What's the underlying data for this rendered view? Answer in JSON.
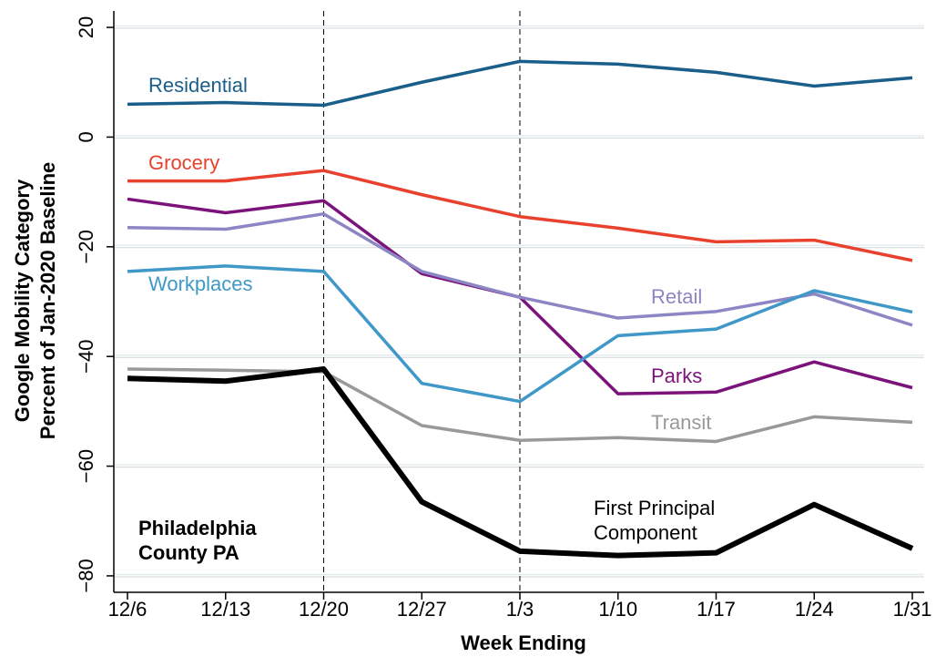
{
  "chart_data": {
    "type": "line",
    "ylabel": [
      "Google Mobility Category",
      "Percent of Jan-2020 Baseline"
    ],
    "xlabel": "Week Ending",
    "annotation": "Philadelphia County PA",
    "categories": [
      "12/6",
      "12/13",
      "12/20",
      "12/27",
      "1/3",
      "1/10",
      "1/17",
      "1/24",
      "1/31"
    ],
    "vlines": [
      "12/20",
      "1/3"
    ],
    "ylim": [
      -83,
      23
    ],
    "yticks": [
      {
        "value": -80,
        "label": "−80"
      },
      {
        "value": -60,
        "label": "−60"
      },
      {
        "value": -40,
        "label": "−40"
      },
      {
        "value": -20,
        "label": "−20"
      },
      0,
      20
    ],
    "grid": true,
    "series": [
      {
        "name": "Residential",
        "color": "#1a5e8a",
        "values": [
          6.0,
          6.3,
          5.8,
          10.0,
          13.8,
          13.3,
          11.8,
          9.3,
          10.8
        ]
      },
      {
        "name": "Grocery",
        "color": "#e8412e",
        "values": [
          -8.0,
          -8.0,
          -6.1,
          -10.5,
          -14.5,
          -16.6,
          -19.1,
          -18.8,
          -22.5
        ]
      },
      {
        "name": "Parks",
        "color": "#7b137b",
        "values": [
          -11.3,
          -13.8,
          -11.6,
          -24.9,
          -29.2,
          -46.8,
          -46.5,
          -41.0,
          -45.7
        ]
      },
      {
        "name": "Retail",
        "color": "#8c86c4",
        "values": [
          -16.5,
          -16.8,
          -14.0,
          -24.5,
          -29.2,
          -33.0,
          -31.8,
          -28.6,
          -34.3
        ]
      },
      {
        "name": "Workplaces",
        "color": "#3f98c8",
        "values": [
          -24.5,
          -23.5,
          -24.5,
          -44.9,
          -48.2,
          -36.2,
          -35.0,
          -28.0,
          -31.9
        ]
      },
      {
        "name": "Transit",
        "color": "#999999",
        "values": [
          -42.3,
          -42.5,
          -42.8,
          -52.6,
          -55.3,
          -54.8,
          -55.5,
          -51.0,
          -52.0
        ]
      },
      {
        "name": "First Principal Component",
        "color": "#000000",
        "values": [
          -44.0,
          -44.5,
          -42.3,
          -66.5,
          -75.5,
          -76.3,
          -75.8,
          -67.0,
          -75.0
        ]
      }
    ]
  }
}
